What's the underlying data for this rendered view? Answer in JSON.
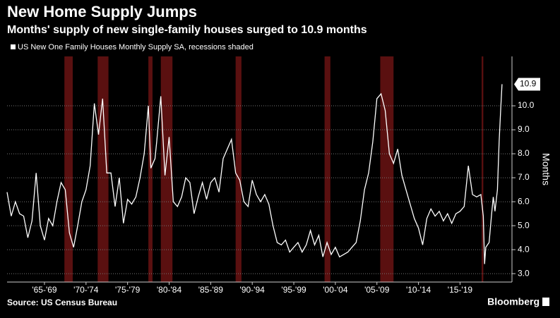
{
  "chart_data": {
    "type": "line",
    "title": "New Home Supply Jumps",
    "subtitle": "Months' supply of new single-family houses surged to 10.9 months",
    "y_axis_label": "Months",
    "source": "Source: US Census Bureau",
    "brand": "Bloomberg",
    "x": [
      1963,
      1963.5,
      1964,
      1964.5,
      1965,
      1965.5,
      1966,
      1966.5,
      1967,
      1967.5,
      1968,
      1968.5,
      1969,
      1969.5,
      1970,
      1970.5,
      1971,
      1971.5,
      1972,
      1972.5,
      1973,
      1973.5,
      1974,
      1974.5,
      1975,
      1975.5,
      1976,
      1976.5,
      1977,
      1977.5,
      1978,
      1978.5,
      1979,
      1979.5,
      1980,
      1980.3,
      1980.8,
      1981,
      1981.5,
      1982,
      1982.5,
      1983,
      1983.5,
      1984,
      1984.5,
      1985,
      1985.5,
      1986,
      1986.5,
      1987,
      1987.5,
      1988,
      1988.5,
      1989,
      1989.5,
      1990,
      1990.5,
      1991,
      1991.5,
      1992,
      1992.5,
      1993,
      1993.5,
      1994,
      1994.5,
      1995,
      1995.5,
      1996,
      1996.5,
      1997,
      1997.5,
      1998,
      1998.5,
      1999,
      1999.5,
      2000,
      2000.5,
      2001,
      2001.5,
      2002,
      2002.5,
      2003,
      2003.5,
      2004,
      2004.5,
      2005,
      2005.5,
      2006,
      2006.5,
      2007,
      2007.5,
      2008,
      2008.5,
      2009,
      2009.5,
      2010,
      2010.5,
      2011,
      2011.5,
      2012,
      2012.5,
      2013,
      2013.5,
      2014,
      2014.5,
      2015,
      2015.5,
      2016,
      2016.5,
      2017,
      2017.5,
      2018,
      2018.5,
      2019,
      2019.5,
      2020,
      2020.3,
      2020.45,
      2020.6,
      2020.8,
      2021,
      2021.3,
      2021.5,
      2021.7,
      2022,
      2022.2,
      2022.4,
      2022.55
    ],
    "series": [
      {
        "name": "US New One Family Houses Monthly Supply SA, recessions shaded",
        "color": "#ffffff",
        "values": [
          6.4,
          5.4,
          6.0,
          5.5,
          5.4,
          4.5,
          5.2,
          7.2,
          5.0,
          4.4,
          5.3,
          5.0,
          6.0,
          6.8,
          6.5,
          4.7,
          4.1,
          5.0,
          6.0,
          6.5,
          7.5,
          10.1,
          8.8,
          10.3,
          7.2,
          7.2,
          5.8,
          7.0,
          5.1,
          6.1,
          5.9,
          6.2,
          7.0,
          8.0,
          10.0,
          7.4,
          7.8,
          8.5,
          10.4,
          7.1,
          8.7,
          6.0,
          5.8,
          6.2,
          7.0,
          6.8,
          5.5,
          6.2,
          6.8,
          6.1,
          6.8,
          7.0,
          6.4,
          7.8,
          8.2,
          8.6,
          7.2,
          6.9,
          6.0,
          5.8,
          6.9,
          6.3,
          6.0,
          6.3,
          5.9,
          5.0,
          4.3,
          4.2,
          4.4,
          3.9,
          4.1,
          4.3,
          3.9,
          4.2,
          4.8,
          4.2,
          4.6,
          3.7,
          4.3,
          3.8,
          4.1,
          3.7,
          3.8,
          3.9,
          4.1,
          4.3,
          5.2,
          6.5,
          7.2,
          8.5,
          10.3,
          10.5,
          9.8,
          8.0,
          7.6,
          8.2,
          7.1,
          6.5,
          5.9,
          5.3,
          4.9,
          4.2,
          5.3,
          5.7,
          5.4,
          5.6,
          5.2,
          5.5,
          5.1,
          5.5,
          5.6,
          5.8,
          7.5,
          6.3,
          6.2,
          6.3,
          5.4,
          3.4,
          4.1,
          4.2,
          4.3,
          5.5,
          6.2,
          5.6,
          6.5,
          8.5,
          9.9,
          10.9
        ]
      }
    ],
    "recessions": [
      [
        1969.9,
        1970.9
      ],
      [
        1973.9,
        1975.2
      ],
      [
        1980.0,
        1980.5
      ],
      [
        1981.5,
        1982.9
      ],
      [
        1990.5,
        1991.2
      ],
      [
        2001.2,
        2001.9
      ],
      [
        2007.9,
        2009.5
      ],
      [
        2020.1,
        2020.3
      ]
    ],
    "recession_color": "#5a1010",
    "xlim": [
      1963,
      2023.75
    ],
    "xticks": [
      {
        "value": 1967.5,
        "label": "'65-'69"
      },
      {
        "value": 1972.5,
        "label": "'70-'74"
      },
      {
        "value": 1977.5,
        "label": "'75-'79"
      },
      {
        "value": 1982.5,
        "label": "'80-'84"
      },
      {
        "value": 1987.5,
        "label": "'85-'89"
      },
      {
        "value": 1992.5,
        "label": "'90-'94"
      },
      {
        "value": 1997.5,
        "label": "'95-'99"
      },
      {
        "value": 2002.5,
        "label": "'00-'04"
      },
      {
        "value": 2007.5,
        "label": "'05-'09"
      },
      {
        "value": 2012.5,
        "label": "'10-'14"
      },
      {
        "value": 2017.5,
        "label": "'15-'19"
      }
    ],
    "ylim": [
      2.65,
      12.06
    ],
    "yticks": [
      {
        "value": 3,
        "label": "3.0"
      },
      {
        "value": 4,
        "label": "4.0"
      },
      {
        "value": 5,
        "label": "5.0"
      },
      {
        "value": 6,
        "label": "6.0"
      },
      {
        "value": 7,
        "label": "7.0"
      },
      {
        "value": 8,
        "label": "8.0"
      },
      {
        "value": 9,
        "label": "9.0"
      },
      {
        "value": 10,
        "label": "10.0"
      }
    ],
    "grid": true
  }
}
